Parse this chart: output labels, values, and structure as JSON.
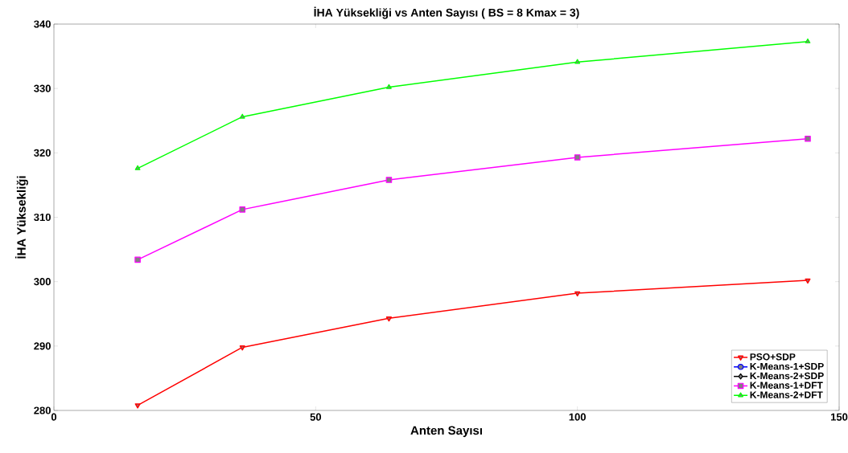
{
  "chart_data": {
    "type": "line",
    "title": "İHA Yüksekliği vs Anten Sayısı ( BS = 8 Kmax = 3)",
    "xlabel": "Anten Sayısı",
    "ylabel": "İHA Yüksekliği",
    "x": [
      16,
      36,
      64,
      100,
      144
    ],
    "series": [
      {
        "name": "PSO+SDP",
        "color": "#ff0000",
        "marker": "triangle-down",
        "values": [
          280.8,
          289.8,
          294.3,
          298.2,
          300.2
        ]
      },
      {
        "name": "K-Means-1+SDP",
        "color": "#0000ff",
        "marker": "circle",
        "values": [
          null,
          null,
          null,
          null,
          null
        ]
      },
      {
        "name": "K-Means-2+SDP",
        "color": "#000000",
        "marker": "diamond",
        "values": [
          null,
          null,
          null,
          null,
          null
        ]
      },
      {
        "name": "K-Means-1+DFT",
        "color": "#ff00ff",
        "marker": "square",
        "values": [
          303.4,
          311.2,
          315.8,
          319.3,
          322.2
        ]
      },
      {
        "name": "K-Means-2+DFT",
        "color": "#00ff00",
        "marker": "triangle",
        "values": [
          317.6,
          325.6,
          330.2,
          334.1,
          337.3
        ]
      }
    ],
    "xlim": [
      0,
      150
    ],
    "ylim": [
      280,
      340
    ],
    "xticks": [
      0,
      50,
      100,
      150
    ],
    "yticks": [
      280,
      290,
      300,
      310,
      320,
      330,
      340
    ],
    "grid": false,
    "legend": "bottom right",
    "line_style": "solid"
  }
}
